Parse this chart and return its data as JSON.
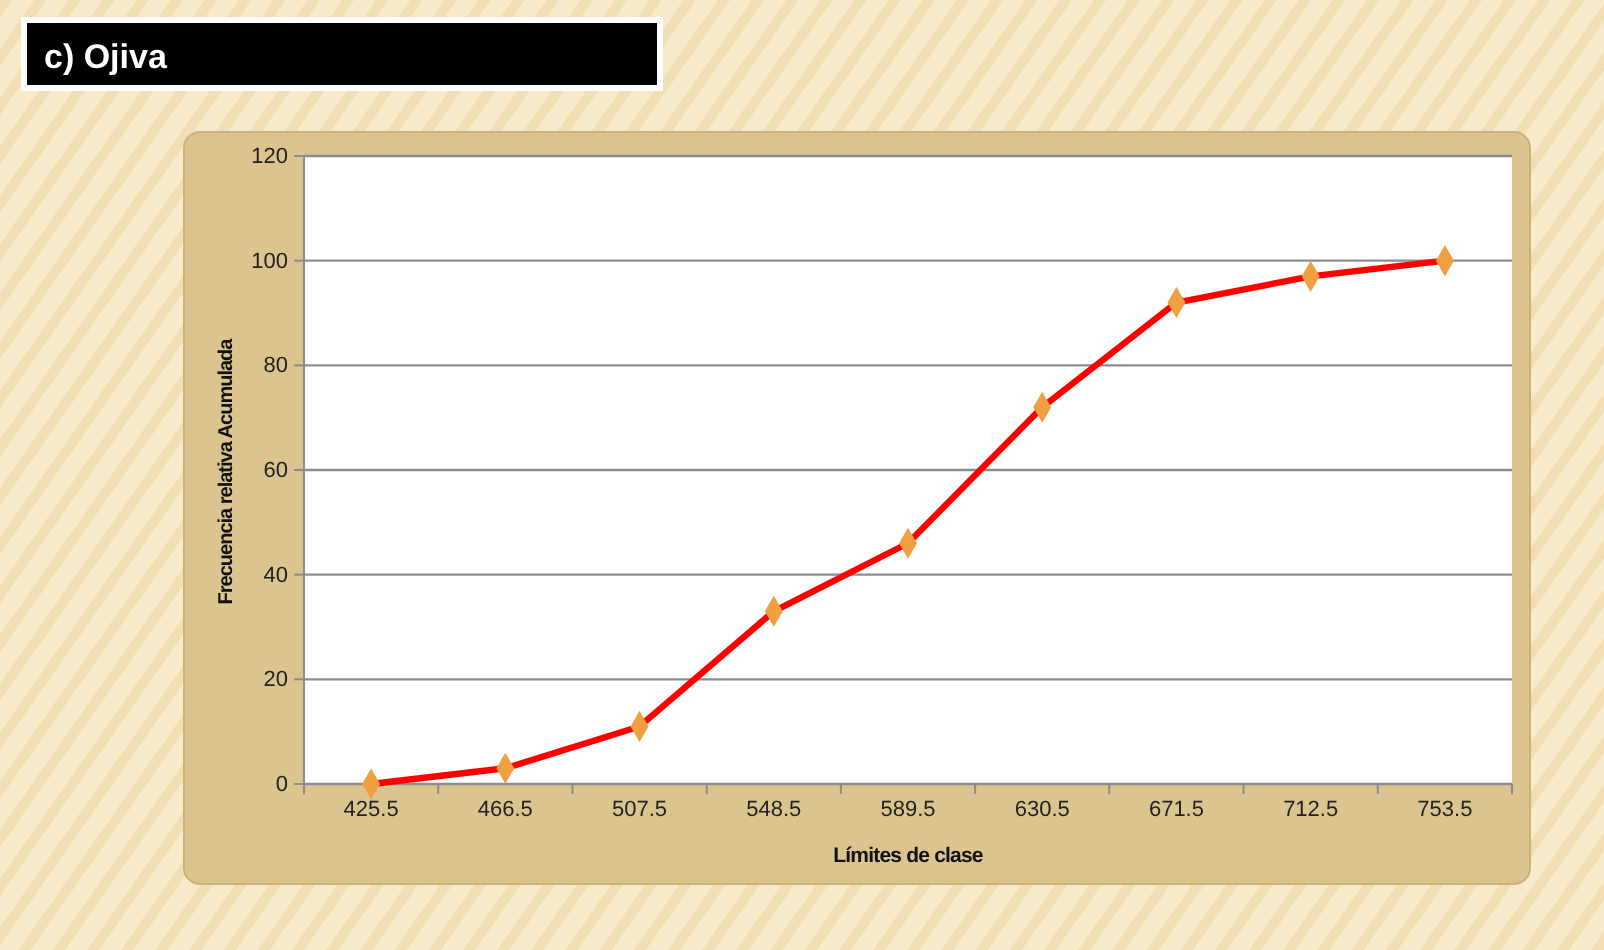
{
  "chart_data": {
    "type": "line",
    "title": "c) Ojiva",
    "xlabel": "Límites de clase",
    "ylabel": "Frecuencia relativa Acumulada",
    "categories": [
      "425.5",
      "466.5",
      "507.5",
      "548.5",
      "589.5",
      "630.5",
      "671.5",
      "712.5",
      "753.5"
    ],
    "series": [
      {
        "color": "#ff0000",
        "values": [
          0,
          3,
          11,
          33,
          46,
          72,
          92,
          97,
          100
        ]
      }
    ],
    "ylim": [
      0,
      120
    ],
    "yticks": [
      0,
      20,
      40,
      60,
      80,
      100,
      120
    ],
    "grid": "y",
    "marker": "diamond",
    "line_style": "solid"
  }
}
